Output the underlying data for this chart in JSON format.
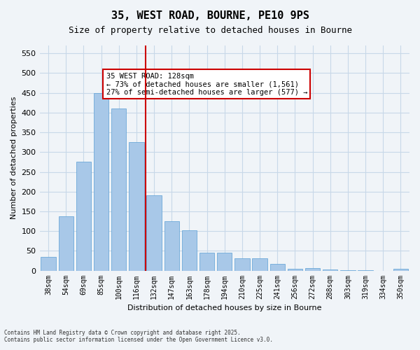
{
  "title_line1": "35, WEST ROAD, BOURNE, PE10 9PS",
  "title_line2": "Size of property relative to detached houses in Bourne",
  "xlabel": "Distribution of detached houses by size in Bourne",
  "ylabel": "Number of detached properties",
  "categories": [
    "38sqm",
    "54sqm",
    "69sqm",
    "85sqm",
    "100sqm",
    "116sqm",
    "132sqm",
    "147sqm",
    "163sqm",
    "178sqm",
    "194sqm",
    "210sqm",
    "225sqm",
    "241sqm",
    "256sqm",
    "272sqm",
    "288sqm",
    "303sqm",
    "319sqm",
    "334sqm",
    "350sqm"
  ],
  "values": [
    35,
    137,
    275,
    450,
    410,
    325,
    190,
    125,
    102,
    45,
    45,
    31,
    31,
    17,
    5,
    7,
    2,
    1,
    1,
    0,
    5
  ],
  "bar_color": "#a8c8e8",
  "bar_edge_color": "#5a9fd4",
  "grid_color": "#c8d8e8",
  "background_color": "#f0f4f8",
  "vline_x_index": 6,
  "vline_color": "#cc0000",
  "annotation_text": "35 WEST ROAD: 128sqm\n← 73% of detached houses are smaller (1,561)\n27% of semi-detached houses are larger (577) →",
  "annotation_box_color": "#ffffff",
  "annotation_box_edge_color": "#cc0000",
  "ylim": [
    0,
    570
  ],
  "yticks": [
    0,
    50,
    100,
    150,
    200,
    250,
    300,
    350,
    400,
    450,
    500,
    550
  ],
  "footnote_line1": "Contains HM Land Registry data © Crown copyright and database right 2025.",
  "footnote_line2": "Contains public sector information licensed under the Open Government Licence v3.0."
}
